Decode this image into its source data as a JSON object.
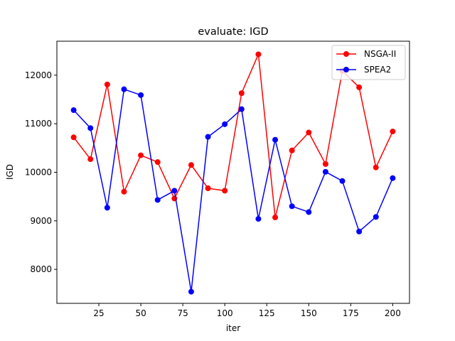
{
  "chart_data": {
    "type": "line",
    "title": "evaluate: IGD",
    "xlabel": "iter",
    "ylabel": "IGD",
    "xlim": [
      0,
      210
    ],
    "ylim": [
      7300,
      12700
    ],
    "xticks": [
      25,
      50,
      75,
      100,
      125,
      150,
      175,
      200
    ],
    "yticks": [
      8000,
      9000,
      10000,
      11000,
      12000
    ],
    "grid": false,
    "legend_position": "top-right",
    "x": [
      10,
      20,
      30,
      40,
      50,
      60,
      70,
      80,
      90,
      100,
      110,
      120,
      130,
      140,
      150,
      160,
      170,
      180,
      190,
      200
    ],
    "series": [
      {
        "name": "NSGA-II",
        "color": "#ff0000",
        "marker": "circle",
        "values": [
          10720,
          10270,
          11810,
          9600,
          10350,
          10210,
          9460,
          10150,
          9670,
          9620,
          11630,
          12430,
          9070,
          10450,
          10820,
          10170,
          12090,
          11750,
          10100,
          10840
        ]
      },
      {
        "name": "SPEA2",
        "color": "#0000ff",
        "marker": "circle",
        "values": [
          11280,
          10910,
          9270,
          11710,
          11590,
          9430,
          9620,
          7540,
          10730,
          10990,
          11300,
          9040,
          10670,
          9300,
          9180,
          10010,
          9820,
          8780,
          9080,
          9880
        ]
      }
    ]
  }
}
